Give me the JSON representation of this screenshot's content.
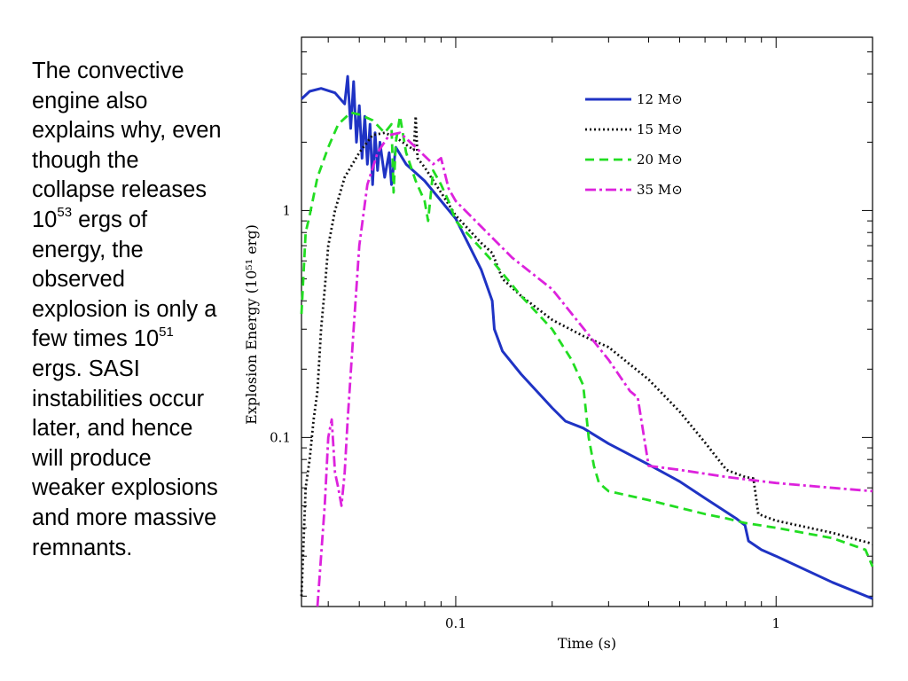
{
  "side_text": {
    "p1": "The convective engine also explains why, even though the collapse releases 10",
    "e1": "53",
    "p2": " ergs of energy, the observed explosion is only a few times 10",
    "e2": "51",
    "p3": " ergs.  SASI instabilities occur later, and hence will produce weaker explosions and more massive remnants."
  },
  "chart_data": {
    "type": "line",
    "title": "",
    "xlabel": "Time (s)",
    "ylabel": "Explosion Energy (10⁵¹ erg)",
    "xscale": "log",
    "yscale": "log",
    "xlim": [
      0.033,
      2.0
    ],
    "ylim": [
      0.018,
      5.8
    ],
    "xticks": [
      {
        "value": 0.1,
        "label": "0.1"
      },
      {
        "value": 1,
        "label": "1"
      }
    ],
    "yticks": [
      {
        "value": 0.1,
        "label": "0.1"
      },
      {
        "value": 1,
        "label": "1"
      }
    ],
    "grid": false,
    "legend_position": "top-right",
    "series": [
      {
        "name": "12 M⊙",
        "color": "#1f33c4",
        "dash": "solid",
        "points": [
          [
            0.033,
            3.1
          ],
          [
            0.035,
            3.35
          ],
          [
            0.038,
            3.45
          ],
          [
            0.042,
            3.3
          ],
          [
            0.045,
            2.95
          ],
          [
            0.046,
            3.9
          ],
          [
            0.047,
            2.3
          ],
          [
            0.048,
            3.7
          ],
          [
            0.049,
            2.0
          ],
          [
            0.05,
            2.9
          ],
          [
            0.051,
            1.7
          ],
          [
            0.052,
            2.6
          ],
          [
            0.053,
            1.6
          ],
          [
            0.054,
            2.4
          ],
          [
            0.055,
            1.3
          ],
          [
            0.056,
            2.2
          ],
          [
            0.057,
            1.5
          ],
          [
            0.058,
            2.0
          ],
          [
            0.06,
            1.4
          ],
          [
            0.062,
            1.8
          ],
          [
            0.063,
            1.3
          ],
          [
            0.065,
            1.9
          ],
          [
            0.07,
            1.6
          ],
          [
            0.08,
            1.35
          ],
          [
            0.1,
            0.92
          ],
          [
            0.12,
            0.55
          ],
          [
            0.13,
            0.4
          ],
          [
            0.132,
            0.3
          ],
          [
            0.14,
            0.24
          ],
          [
            0.16,
            0.19
          ],
          [
            0.2,
            0.135
          ],
          [
            0.22,
            0.118
          ],
          [
            0.25,
            0.11
          ],
          [
            0.3,
            0.094
          ],
          [
            0.4,
            0.076
          ],
          [
            0.5,
            0.064
          ],
          [
            0.6,
            0.054
          ],
          [
            0.75,
            0.044
          ],
          [
            0.8,
            0.041
          ],
          [
            0.82,
            0.035
          ],
          [
            0.9,
            0.032
          ],
          [
            1.0,
            0.03
          ],
          [
            1.5,
            0.023
          ],
          [
            2.0,
            0.0195
          ]
        ]
      },
      {
        "name": "15 M⊙",
        "color": "#111111",
        "dash": "dotted",
        "points": [
          [
            0.033,
            0.02
          ],
          [
            0.034,
            0.06
          ],
          [
            0.035,
            0.08
          ],
          [
            0.036,
            0.12
          ],
          [
            0.037,
            0.16
          ],
          [
            0.038,
            0.3
          ],
          [
            0.039,
            0.45
          ],
          [
            0.04,
            0.7
          ],
          [
            0.042,
            1.0
          ],
          [
            0.045,
            1.4
          ],
          [
            0.05,
            1.8
          ],
          [
            0.055,
            2.15
          ],
          [
            0.06,
            2.2
          ],
          [
            0.065,
            2.1
          ],
          [
            0.07,
            1.95
          ],
          [
            0.074,
            1.85
          ],
          [
            0.075,
            2.6
          ],
          [
            0.076,
            1.7
          ],
          [
            0.08,
            1.55
          ],
          [
            0.09,
            1.2
          ],
          [
            0.1,
            0.95
          ],
          [
            0.12,
            0.72
          ],
          [
            0.13,
            0.65
          ],
          [
            0.14,
            0.5
          ],
          [
            0.16,
            0.42
          ],
          [
            0.2,
            0.33
          ],
          [
            0.25,
            0.28
          ],
          [
            0.3,
            0.25
          ],
          [
            0.4,
            0.18
          ],
          [
            0.5,
            0.13
          ],
          [
            0.6,
            0.095
          ],
          [
            0.7,
            0.072
          ],
          [
            0.8,
            0.067
          ],
          [
            0.85,
            0.066
          ],
          [
            0.88,
            0.046
          ],
          [
            1.0,
            0.043
          ],
          [
            1.5,
            0.038
          ],
          [
            2.0,
            0.034
          ]
        ]
      },
      {
        "name": "20 M⊙",
        "color": "#22dd22",
        "dash": "dashed",
        "points": [
          [
            0.033,
            0.35
          ],
          [
            0.034,
            0.8
          ],
          [
            0.035,
            0.95
          ],
          [
            0.037,
            1.4
          ],
          [
            0.04,
            1.9
          ],
          [
            0.043,
            2.4
          ],
          [
            0.047,
            2.7
          ],
          [
            0.05,
            2.65
          ],
          [
            0.055,
            2.5
          ],
          [
            0.06,
            2.2
          ],
          [
            0.063,
            2.4
          ],
          [
            0.064,
            1.2
          ],
          [
            0.065,
            2.0
          ],
          [
            0.067,
            2.6
          ],
          [
            0.07,
            1.8
          ],
          [
            0.075,
            1.35
          ],
          [
            0.08,
            1.1
          ],
          [
            0.082,
            0.9
          ],
          [
            0.085,
            1.5
          ],
          [
            0.09,
            1.3
          ],
          [
            0.095,
            1.1
          ],
          [
            0.1,
            0.9
          ],
          [
            0.13,
            0.6
          ],
          [
            0.16,
            0.42
          ],
          [
            0.2,
            0.3
          ],
          [
            0.23,
            0.22
          ],
          [
            0.25,
            0.17
          ],
          [
            0.26,
            0.1
          ],
          [
            0.27,
            0.075
          ],
          [
            0.28,
            0.063
          ],
          [
            0.3,
            0.058
          ],
          [
            0.4,
            0.053
          ],
          [
            0.5,
            0.049
          ],
          [
            0.6,
            0.046
          ],
          [
            0.7,
            0.044
          ],
          [
            0.8,
            0.042
          ],
          [
            1.0,
            0.04
          ],
          [
            1.5,
            0.036
          ],
          [
            1.9,
            0.032
          ],
          [
            2.0,
            0.027
          ]
        ]
      },
      {
        "name": "35 M⊙",
        "color": "#dd22dd",
        "dash": "dashdot",
        "points": [
          [
            0.037,
            0.018
          ],
          [
            0.039,
            0.05
          ],
          [
            0.04,
            0.1
          ],
          [
            0.041,
            0.12
          ],
          [
            0.042,
            0.07
          ],
          [
            0.043,
            0.06
          ],
          [
            0.044,
            0.05
          ],
          [
            0.045,
            0.07
          ],
          [
            0.046,
            0.12
          ],
          [
            0.048,
            0.3
          ],
          [
            0.05,
            0.7
          ],
          [
            0.053,
            1.3
          ],
          [
            0.057,
            1.8
          ],
          [
            0.062,
            2.15
          ],
          [
            0.067,
            2.2
          ],
          [
            0.075,
            1.9
          ],
          [
            0.085,
            1.6
          ],
          [
            0.09,
            1.7
          ],
          [
            0.092,
            1.5
          ],
          [
            0.095,
            1.25
          ],
          [
            0.1,
            1.1
          ],
          [
            0.12,
            0.85
          ],
          [
            0.15,
            0.62
          ],
          [
            0.2,
            0.45
          ],
          [
            0.3,
            0.22
          ],
          [
            0.35,
            0.16
          ],
          [
            0.37,
            0.15
          ],
          [
            0.4,
            0.075
          ],
          [
            0.5,
            0.072
          ],
          [
            0.7,
            0.067
          ],
          [
            1.0,
            0.063
          ],
          [
            1.5,
            0.06
          ],
          [
            2.0,
            0.058
          ]
        ]
      }
    ]
  }
}
